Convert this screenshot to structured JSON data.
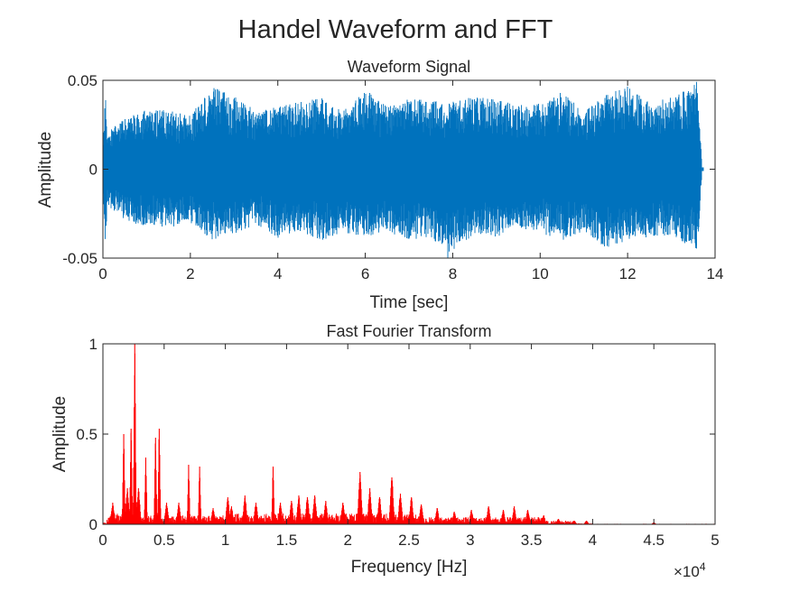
{
  "figure": {
    "title": "Handel Waveform and FFT"
  },
  "chart_data": [
    {
      "type": "line",
      "title": "Waveform Signal",
      "xlabel": "Time [sec]",
      "ylabel": "Amplitude",
      "xlim": [
        0,
        14
      ],
      "ylim": [
        -0.05,
        0.05
      ],
      "xticks": [
        0,
        2,
        4,
        6,
        8,
        10,
        12,
        14
      ],
      "xtick_labels": [
        "0",
        "2",
        "4",
        "6",
        "8",
        "10",
        "12",
        "14"
      ],
      "yticks": [
        -0.05,
        0,
        0.05
      ],
      "ytick_labels": [
        "-0.05",
        "0",
        "0.05"
      ],
      "grid": false,
      "color": "#0072BD",
      "signal_end": 13.7,
      "envelope": {
        "t": [
          0,
          0.05,
          0.1,
          0.3,
          0.6,
          1.0,
          1.5,
          2.0,
          2.5,
          3.0,
          3.5,
          4.0,
          4.5,
          5.0,
          5.5,
          6.0,
          6.5,
          7.0,
          7.5,
          7.9,
          8.5,
          9.0,
          9.5,
          10.0,
          10.5,
          11.0,
          11.5,
          12.0,
          12.5,
          13.0,
          13.4,
          13.6,
          13.7
        ],
        "max": [
          0.008,
          0.046,
          0.02,
          0.025,
          0.03,
          0.034,
          0.033,
          0.03,
          0.047,
          0.041,
          0.033,
          0.035,
          0.038,
          0.04,
          0.033,
          0.045,
          0.035,
          0.04,
          0.039,
          0.038,
          0.041,
          0.039,
          0.036,
          0.037,
          0.044,
          0.032,
          0.042,
          0.047,
          0.038,
          0.042,
          0.045,
          0.05,
          0.003
        ],
        "min": [
          -0.008,
          -0.05,
          -0.02,
          -0.025,
          -0.03,
          -0.032,
          -0.033,
          -0.03,
          -0.04,
          -0.037,
          -0.031,
          -0.039,
          -0.035,
          -0.04,
          -0.036,
          -0.038,
          -0.035,
          -0.04,
          -0.038,
          -0.052,
          -0.036,
          -0.038,
          -0.034,
          -0.036,
          -0.04,
          -0.035,
          -0.045,
          -0.04,
          -0.038,
          -0.038,
          -0.043,
          -0.045,
          -0.003
        ]
      }
    },
    {
      "type": "line",
      "title": "Fast Fourier Transform",
      "xlabel": "Frequency [Hz]",
      "ylabel": "Amplitude",
      "xlim": [
        0,
        50000
      ],
      "ylim": [
        0,
        1
      ],
      "xticks": [
        0,
        5000,
        10000,
        15000,
        20000,
        25000,
        30000,
        35000,
        40000,
        45000,
        50000
      ],
      "xtick_labels": [
        "0",
        "0.5",
        "1",
        "1.5",
        "2",
        "2.5",
        "3",
        "3.5",
        "4",
        "4.5",
        "5"
      ],
      "yticks": [
        0,
        0.5,
        1
      ],
      "ytick_labels": [
        "0",
        "0.5",
        "1"
      ],
      "x_exponent_label": "×10",
      "x_exponent": "4",
      "grid": false,
      "color": "#FF0000",
      "peaks": [
        {
          "f": 800,
          "a": 0.12
        },
        {
          "f": 1700,
          "a": 0.5
        },
        {
          "f": 2000,
          "a": 0.2
        },
        {
          "f": 2300,
          "a": 0.53
        },
        {
          "f": 2600,
          "a": 1.0
        },
        {
          "f": 2900,
          "a": 0.2
        },
        {
          "f": 3500,
          "a": 0.37
        },
        {
          "f": 4300,
          "a": 0.48
        },
        {
          "f": 4600,
          "a": 0.53
        },
        {
          "f": 5200,
          "a": 0.12
        },
        {
          "f": 6200,
          "a": 0.12
        },
        {
          "f": 7000,
          "a": 0.33
        },
        {
          "f": 7900,
          "a": 0.32
        },
        {
          "f": 9000,
          "a": 0.09
        },
        {
          "f": 10200,
          "a": 0.15
        },
        {
          "f": 10500,
          "a": 0.1
        },
        {
          "f": 11600,
          "a": 0.16
        },
        {
          "f": 12500,
          "a": 0.12
        },
        {
          "f": 13900,
          "a": 0.32
        },
        {
          "f": 14500,
          "a": 0.12
        },
        {
          "f": 15400,
          "a": 0.13
        },
        {
          "f": 16000,
          "a": 0.16
        },
        {
          "f": 16700,
          "a": 0.15
        },
        {
          "f": 17300,
          "a": 0.16
        },
        {
          "f": 18200,
          "a": 0.13
        },
        {
          "f": 19600,
          "a": 0.12
        },
        {
          "f": 21000,
          "a": 0.29
        },
        {
          "f": 21800,
          "a": 0.2
        },
        {
          "f": 22600,
          "a": 0.15
        },
        {
          "f": 23600,
          "a": 0.26
        },
        {
          "f": 24300,
          "a": 0.17
        },
        {
          "f": 25200,
          "a": 0.15
        },
        {
          "f": 26000,
          "a": 0.11
        },
        {
          "f": 27300,
          "a": 0.09
        },
        {
          "f": 28700,
          "a": 0.07
        },
        {
          "f": 30100,
          "a": 0.08
        },
        {
          "f": 31500,
          "a": 0.1
        },
        {
          "f": 32700,
          "a": 0.08
        },
        {
          "f": 33600,
          "a": 0.1
        },
        {
          "f": 34700,
          "a": 0.08
        },
        {
          "f": 36000,
          "a": 0.05
        },
        {
          "f": 37200,
          "a": 0.03
        },
        {
          "f": 38500,
          "a": 0.02
        },
        {
          "f": 39500,
          "a": 0.02
        },
        {
          "f": 45000,
          "a": 0.01
        }
      ]
    }
  ]
}
